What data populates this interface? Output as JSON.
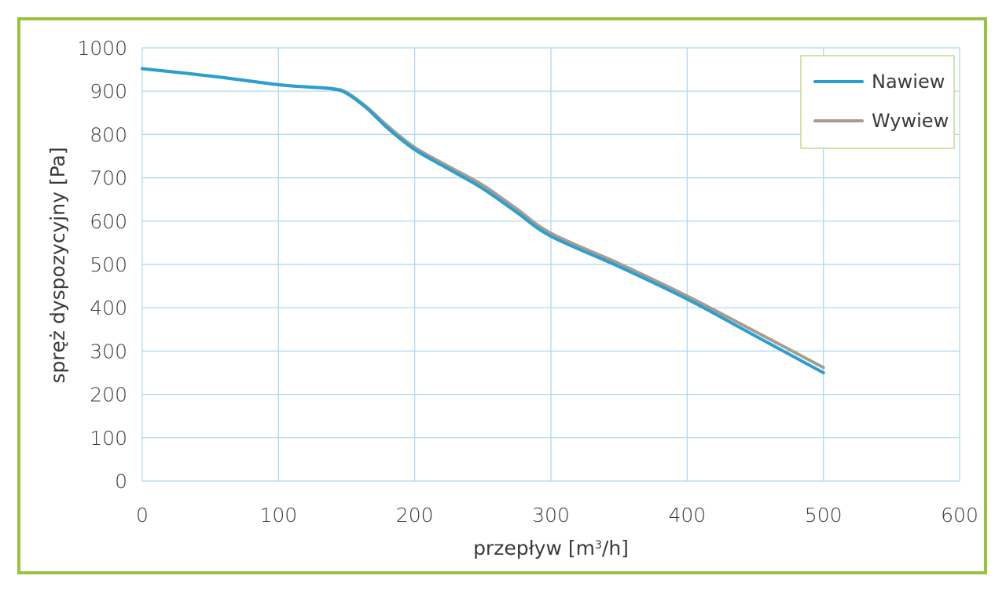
{
  "colors": {
    "frame": "#9bc23c",
    "grid": "#a9d8ea",
    "legend_border": "#c5d98a",
    "nawiew": "#2a9fd0",
    "wywiew": "#a89c8c"
  },
  "chart_data": {
    "type": "line",
    "xlabel": "przepływ [m³/h]",
    "ylabel": "spręż dyspozycyjny  [Pa]",
    "xlim": [
      0,
      600
    ],
    "ylim": [
      0,
      1000
    ],
    "xticks": [
      0,
      100,
      200,
      300,
      400,
      500,
      600
    ],
    "yticks": [
      0,
      100,
      200,
      300,
      400,
      500,
      600,
      700,
      800,
      900,
      1000
    ],
    "grid": true,
    "legend_position": "top-right",
    "series": [
      {
        "name": "Nawiew",
        "color": "#2a9fd0",
        "x": [
          0,
          50,
          100,
          120,
          140,
          150,
          165,
          180,
          200,
          225,
          250,
          275,
          300,
          350,
          400,
          450,
          500
        ],
        "y": [
          952,
          935,
          915,
          910,
          905,
          895,
          860,
          815,
          765,
          720,
          675,
          620,
          565,
          495,
          420,
          335,
          250
        ]
      },
      {
        "name": "Wywiew",
        "color": "#a89c8c",
        "x": [
          0,
          50,
          100,
          120,
          140,
          150,
          165,
          180,
          200,
          225,
          250,
          275,
          300,
          350,
          400,
          450,
          500
        ],
        "y": [
          952,
          935,
          915,
          910,
          906,
          897,
          863,
          820,
          770,
          726,
          683,
          628,
          572,
          502,
          427,
          345,
          262
        ]
      }
    ]
  }
}
